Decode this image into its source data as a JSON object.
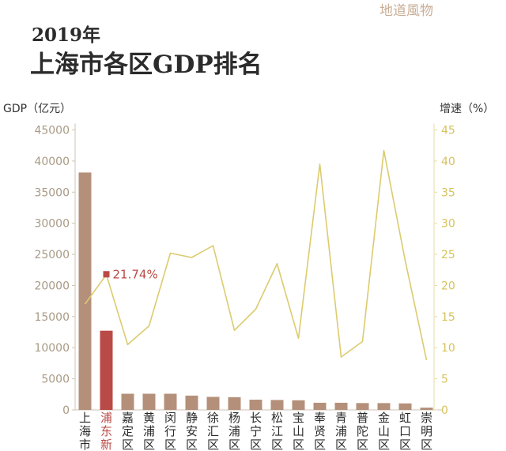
{
  "header": {
    "brand": "地道風物",
    "year": "2019年",
    "title": "上海市各区GDP排名"
  },
  "colors": {
    "bar": "#b4907a",
    "bar_highlight": "#b94a46",
    "line": "#dccb6e",
    "left_axis_text": "#a89a85",
    "right_axis_text": "#d6c35a",
    "title": "#2b2b2b",
    "brand": "#c9ae96"
  },
  "chart_data": {
    "type": "bar",
    "categories": [
      "上海市",
      "浦东新",
      "嘉定区",
      "黄浦区",
      "闵行区",
      "静安区",
      "徐汇区",
      "杨浦区",
      "长宁区",
      "松江区",
      "宝山区",
      "奉贤区",
      "青浦区",
      "普陀区",
      "金山区",
      "虹口区",
      "崇明区"
    ],
    "highlight_index": 1,
    "series": [
      {
        "axis": "left",
        "type": "bar",
        "values": [
          38155,
          12734,
          2600,
          2600,
          2600,
          2300,
          2100,
          2050,
          1650,
          1600,
          1550,
          1150,
          1150,
          1100,
          1100,
          1050,
          370
        ]
      },
      {
        "axis": "right",
        "type": "line",
        "values": [
          17,
          21.74,
          10.5,
          13.5,
          25.2,
          24.5,
          26.4,
          12.8,
          16.2,
          23.5,
          11.5,
          39.5,
          8.5,
          11,
          41.7,
          24,
          8
        ]
      }
    ],
    "y_left": {
      "label": "GDP（亿元）",
      "min": 0,
      "max": 45000,
      "ticks": [
        0,
        5000,
        10000,
        15000,
        20000,
        25000,
        30000,
        35000,
        40000,
        45000
      ]
    },
    "y_right": {
      "label": "增速（%）",
      "min": 0,
      "max": 45,
      "ticks": [
        0,
        5,
        10,
        15,
        20,
        25,
        30,
        35,
        40,
        45
      ]
    },
    "annotation": {
      "index": 1,
      "text": "21.74%"
    }
  }
}
